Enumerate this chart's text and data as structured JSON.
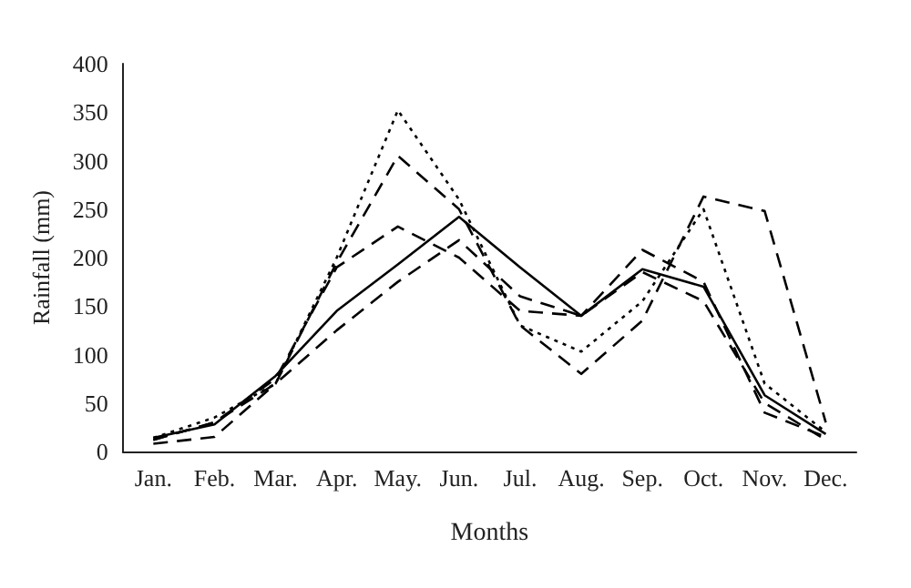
{
  "chart_data": {
    "type": "line",
    "xlabel": "Months",
    "ylabel": "Rainfall (mm)",
    "categories": [
      "Jan.",
      "Feb.",
      "Mar.",
      "Apr.",
      "May.",
      "Jun.",
      "Jul.",
      "Aug.",
      "Sep.",
      "Oct.",
      "Nov.",
      "Dec."
    ],
    "ylim": [
      0,
      400
    ],
    "yticks": [
      0,
      50,
      100,
      150,
      200,
      250,
      300,
      350,
      400
    ],
    "grid": false,
    "marker": "none",
    "series": [
      {
        "color": "#000000",
        "line_style": "solid",
        "values": [
          14,
          28,
          78,
          145,
          193,
          242,
          190,
          140,
          188,
          170,
          58,
          18
        ]
      },
      {
        "color": "#000000",
        "line_style": "dotted",
        "values": [
          14,
          35,
          70,
          200,
          352,
          260,
          130,
          103,
          155,
          250,
          70,
          20
        ]
      },
      {
        "color": "#000000",
        "line_style": "dashed",
        "values": [
          8,
          15,
          70,
          195,
          305,
          250,
          130,
          80,
          135,
          263,
          248,
          30
        ]
      },
      {
        "color": "#000000",
        "line_style": "dashed",
        "values": [
          12,
          30,
          75,
          190,
          232,
          200,
          145,
          140,
          208,
          175,
          40,
          15
        ]
      },
      {
        "color": "#000000",
        "line_style": "dashed",
        "values": [
          12,
          30,
          70,
          125,
          175,
          218,
          160,
          140,
          185,
          155,
          50,
          12
        ]
      }
    ]
  }
}
